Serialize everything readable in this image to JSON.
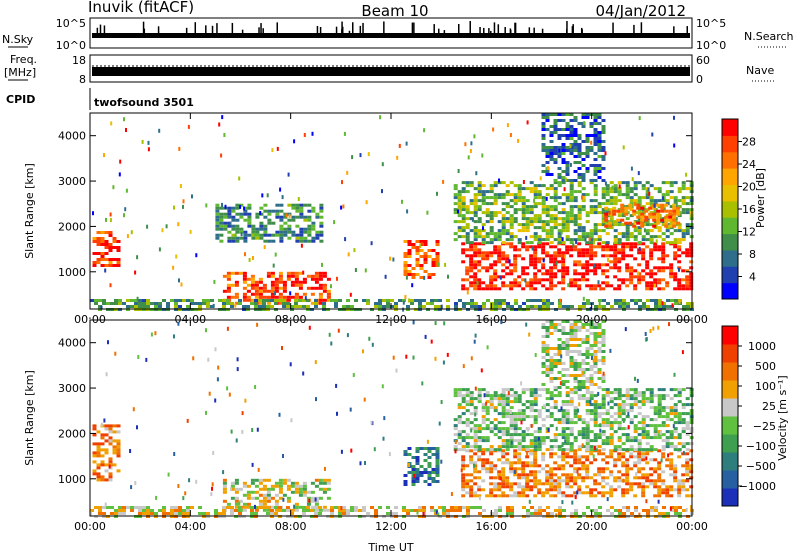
{
  "header": {
    "station": "Inuvik (fitACF)",
    "beam": "Beam 10",
    "date": "04/Jan/2012"
  },
  "panels": {
    "nsky_label": "N.Sky",
    "nsearch_label": "N.Search",
    "freq_label": "Freq.",
    "freq_unit": "[MHz]",
    "nave_label": "Nave",
    "cpid_label": "CPID",
    "cpid_value": "twofsound 3501",
    "nsky_ticks": [
      "10^5",
      "10^0"
    ],
    "nsearch_ticks": [
      "10^5",
      "10^0"
    ],
    "freq_ticks": [
      "18",
      "8"
    ],
    "nave_ticks": [
      "60",
      "0"
    ]
  },
  "chart_data": [
    {
      "type": "heatmap",
      "panel": "power",
      "xlabel": "",
      "ylabel": "Slant Range [km]",
      "xlim": [
        0,
        24
      ],
      "ylim": [
        180,
        4500
      ],
      "y_ticks": [
        1000,
        2000,
        3000,
        4000
      ],
      "x_ticks": [
        "00:00",
        "04:00",
        "08:00",
        "12:00",
        "16:00",
        "20:00",
        "00:00"
      ],
      "colorbar": {
        "label": "Power [dB]",
        "ticks": [
          "4",
          "8",
          "12",
          "16",
          "20",
          "24",
          "28"
        ],
        "colors": [
          "#0000ff",
          "#2040b0",
          "#2e6e8a",
          "#3f8f4a",
          "#60b830",
          "#a8c000",
          "#e8c000",
          "#ffa500",
          "#ff7000",
          "#ff4000",
          "#ff0000"
        ]
      },
      "regions": [
        {
          "t0": 0.1,
          "t1": 1.2,
          "r0": 1150,
          "r1": 1900,
          "level": 0.88
        },
        {
          "t0": 5.3,
          "t1": 9.5,
          "r0": 300,
          "r1": 1000,
          "level": 0.86
        },
        {
          "t0": 5.0,
          "t1": 9.3,
          "r0": 1700,
          "r1": 2500,
          "level": 0.3
        },
        {
          "t0": 12.5,
          "t1": 13.9,
          "r0": 850,
          "r1": 1700,
          "level": 0.82
        },
        {
          "t0": 14.8,
          "t1": 24.0,
          "r0": 600,
          "r1": 1650,
          "level": 0.94
        },
        {
          "t0": 14.5,
          "t1": 24.0,
          "r0": 1650,
          "r1": 3000,
          "level": 0.4
        },
        {
          "t0": 18.0,
          "t1": 20.5,
          "r0": 3000,
          "r1": 4500,
          "level": 0.2
        },
        {
          "t0": 0.0,
          "t1": 24.0,
          "r0": 180,
          "r1": 400,
          "level": 0.35
        },
        {
          "t0": 20.5,
          "t1": 23.5,
          "r0": 2000,
          "r1": 2500,
          "level": 0.78
        }
      ]
    },
    {
      "type": "heatmap",
      "panel": "velocity",
      "xlabel": "Time UT",
      "ylabel": "Slant Range [km]",
      "xlim": [
        0,
        24
      ],
      "ylim": [
        180,
        4500
      ],
      "y_ticks": [
        1000,
        2000,
        3000,
        4000
      ],
      "x_ticks": [
        "00:00",
        "04:00",
        "08:00",
        "12:00",
        "16:00",
        "20:00",
        "00:00"
      ],
      "colorbar": {
        "label": "Velocity [m s⁻¹]",
        "ticks": [
          "1000",
          "500",
          "100",
          "25",
          "−25",
          "−100",
          "−500",
          "−1000"
        ],
        "colors": [
          "#1c2fb8",
          "#2660a0",
          "#2e7e7e",
          "#3f9f50",
          "#60c040",
          "#c8c8c8",
          "#f0a000",
          "#f07000",
          "#f04000",
          "#ff0000"
        ]
      },
      "regions": [
        {
          "t0": 0.1,
          "t1": 1.2,
          "r0": 1000,
          "r1": 2200,
          "level": 0.72
        },
        {
          "t0": 5.3,
          "t1": 9.5,
          "r0": 300,
          "r1": 1000,
          "level": 0.55
        },
        {
          "t0": 12.5,
          "t1": 13.9,
          "r0": 850,
          "r1": 1700,
          "level": 0.2
        },
        {
          "t0": 14.8,
          "t1": 24.0,
          "r0": 600,
          "r1": 1650,
          "level": 0.72
        },
        {
          "t0": 14.5,
          "t1": 24.0,
          "r0": 1650,
          "r1": 3000,
          "level": 0.45
        },
        {
          "t0": 18.0,
          "t1": 20.5,
          "r0": 3000,
          "r1": 4500,
          "level": 0.5
        },
        {
          "t0": 0.0,
          "t1": 24.0,
          "r0": 180,
          "r1": 400,
          "level": 0.6
        }
      ]
    }
  ]
}
